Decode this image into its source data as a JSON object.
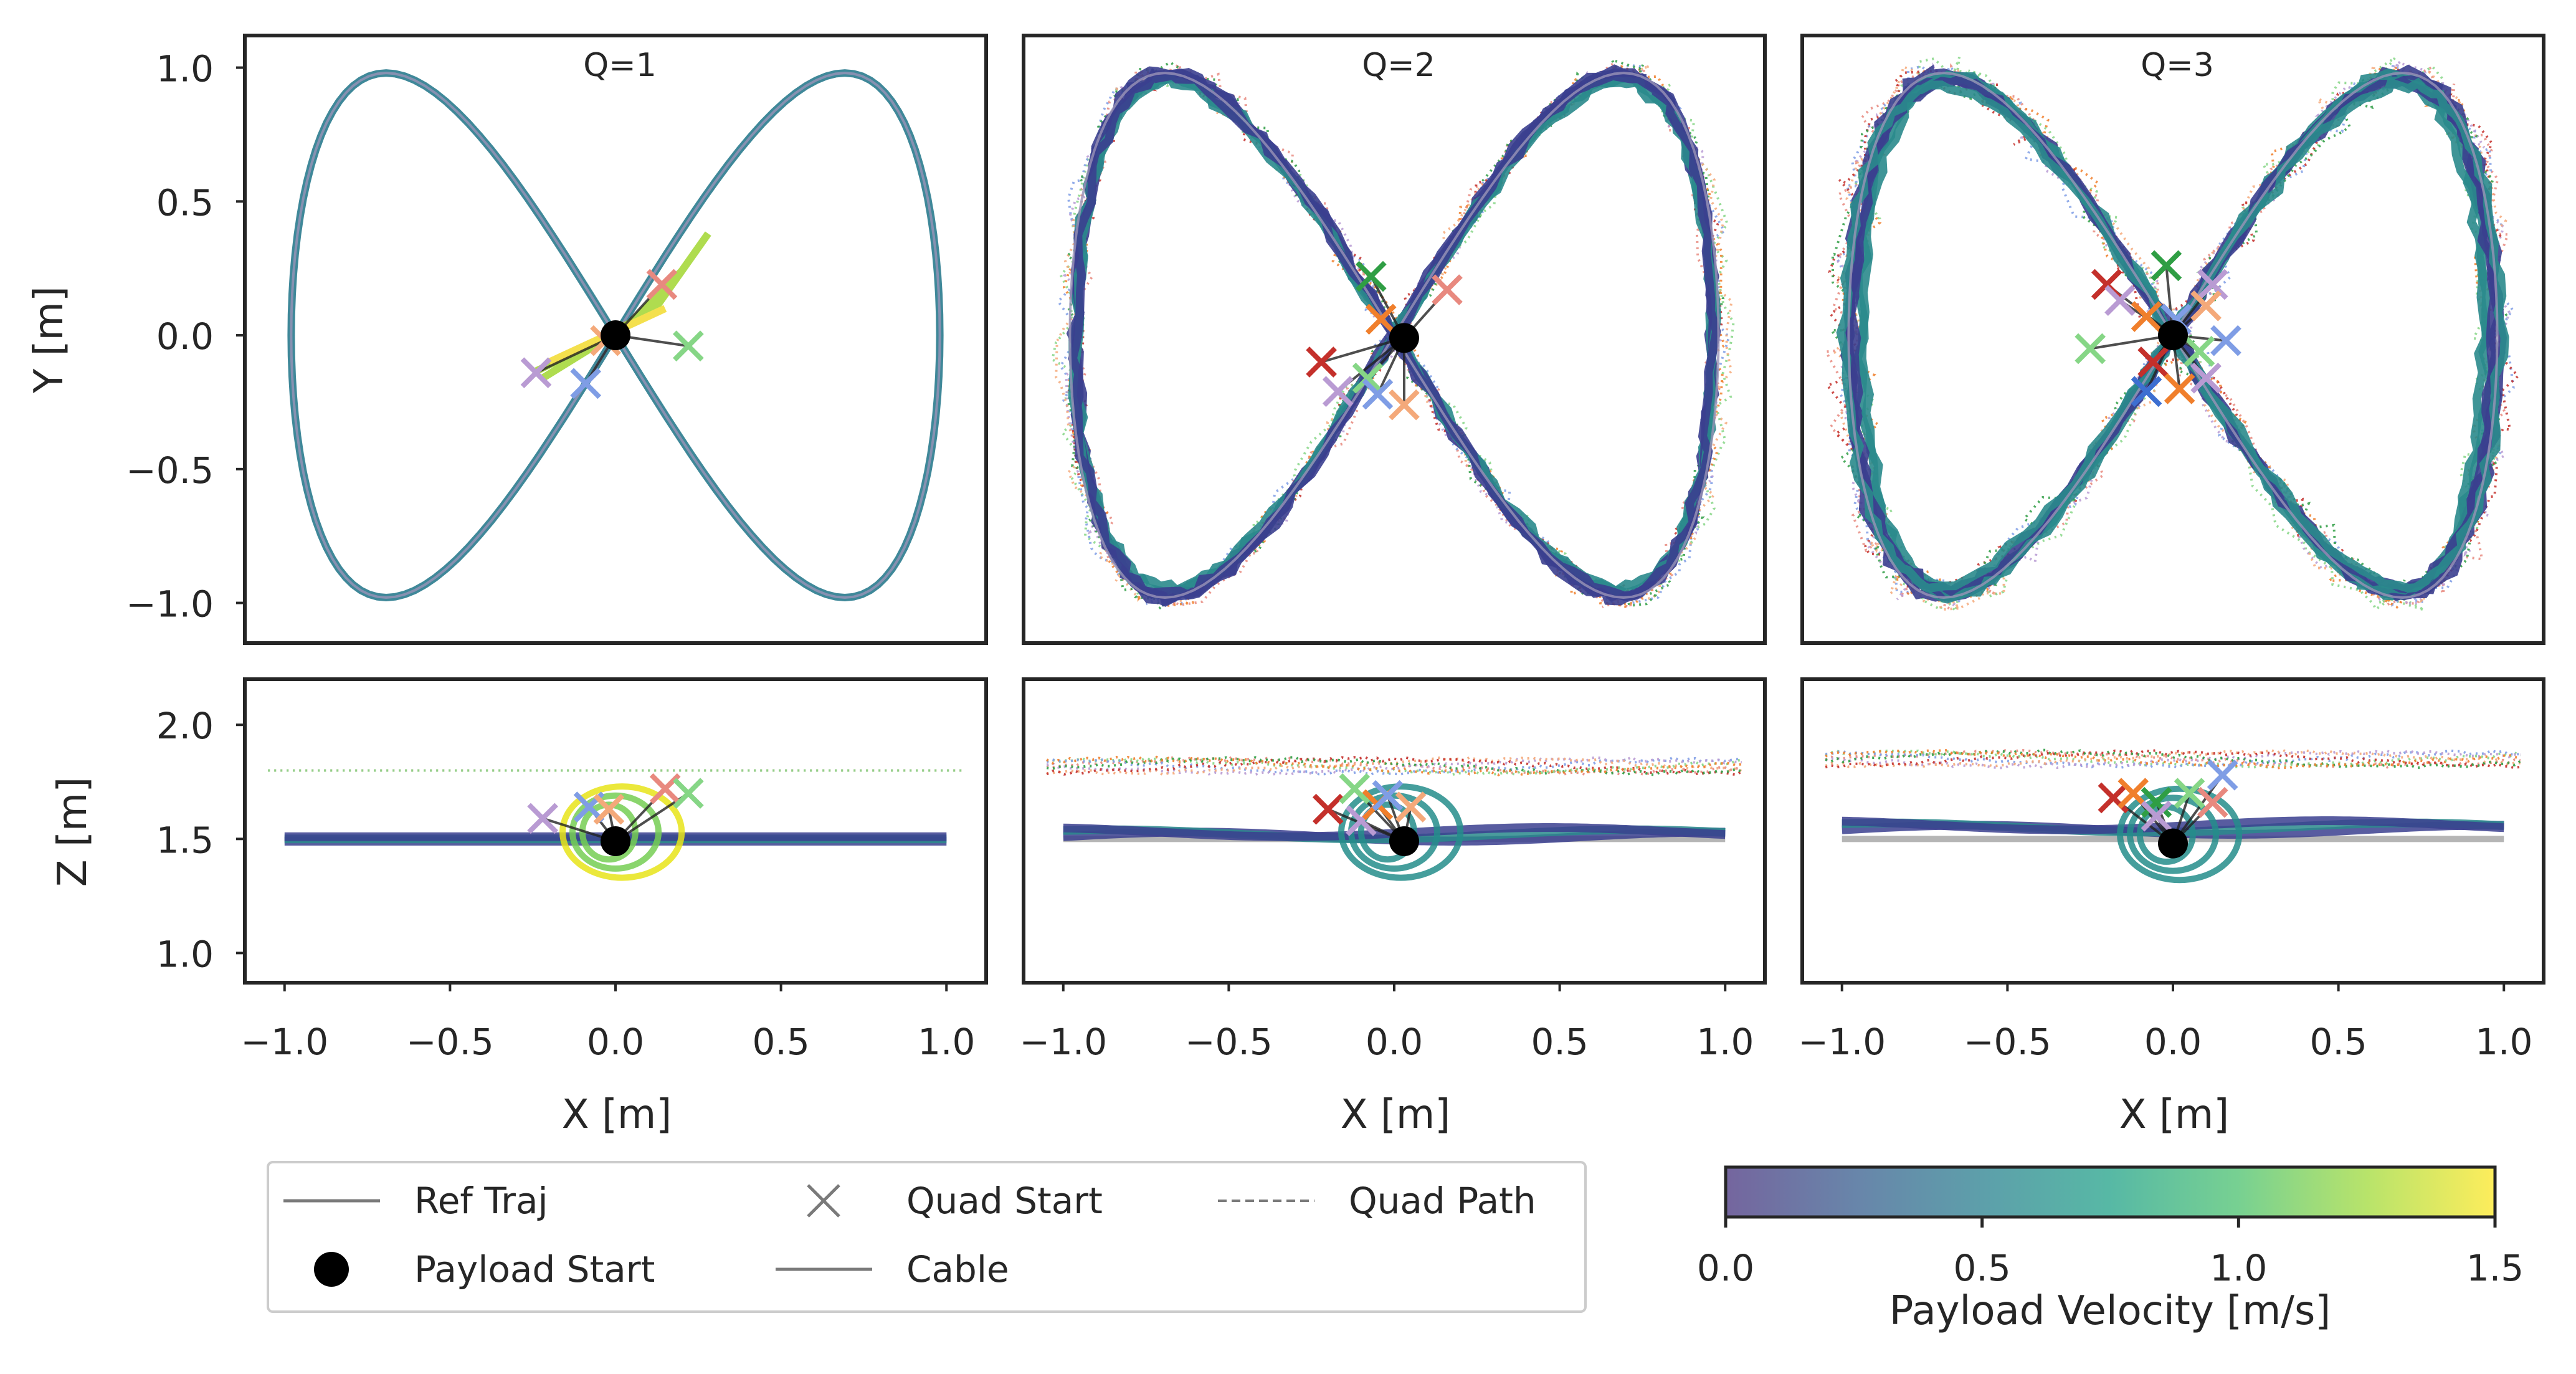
{
  "chart_data": [
    {
      "type": "line",
      "title": "Q=1",
      "xlabel": "",
      "ylabel": "Y [m]",
      "xlim": [
        -1.12,
        1.12
      ],
      "ylim": [
        -1.15,
        1.12
      ],
      "xticks": [],
      "yticks": [
        {
          "v": 1.0,
          "l": "1.0"
        },
        {
          "v": 0.5,
          "l": "0.5"
        },
        {
          "v": 0.0,
          "l": "0.0"
        },
        {
          "v": -0.5,
          "l": "−0.5"
        },
        {
          "v": -1.0,
          "l": "−1.0"
        }
      ],
      "grid": false,
      "series": [
        {
          "role": "reference",
          "curve": "figure-eight",
          "x_amplitude": 1.0,
          "y_amplitude": 1.0,
          "color": "#7a7a7a"
        },
        {
          "role": "payload-path",
          "curve": "figure-eight",
          "x_amplitude": 1.0,
          "y_amplitude": 1.0,
          "color": "#26808e"
        },
        {
          "role": "payload-start",
          "x": 0.0,
          "y": 0.0,
          "color": "#000000"
        }
      ],
      "quad_starts": [
        {
          "x": 0.14,
          "y": 0.19,
          "color": "#e8897f"
        },
        {
          "x": 0.22,
          "y": -0.04,
          "color": "#86d686"
        },
        {
          "x": -0.09,
          "y": -0.18,
          "color": "#7f9de5"
        },
        {
          "x": -0.24,
          "y": -0.14,
          "color": "#b99bd3"
        },
        {
          "x": -0.03,
          "y": -0.02,
          "color": "#f4a97a"
        }
      ]
    },
    {
      "type": "line",
      "title": "Q=2",
      "xlabel": "",
      "ylabel": "",
      "xlim": [
        -1.12,
        1.12
      ],
      "ylim": [
        -1.15,
        1.12
      ],
      "xticks": [],
      "yticks": [],
      "grid": false,
      "series": [
        {
          "role": "reference",
          "curve": "figure-eight",
          "x_amplitude": 1.0,
          "y_amplitude": 1.0,
          "color": "#7a7a7a"
        },
        {
          "role": "payload-path",
          "curve": "figure-eight",
          "x_amplitude": 1.0,
          "y_amplitude": 1.0,
          "color": "#3a3e8c"
        },
        {
          "role": "payload-start",
          "x": 0.03,
          "y": -0.01,
          "color": "#000000"
        }
      ],
      "quad_starts": [
        {
          "x": -0.07,
          "y": 0.22,
          "color": "#2f9e44"
        },
        {
          "x": 0.16,
          "y": 0.17,
          "color": "#e8897f"
        },
        {
          "x": -0.04,
          "y": 0.06,
          "color": "#f07f2c"
        },
        {
          "x": -0.22,
          "y": -0.1,
          "color": "#c4302b"
        },
        {
          "x": -0.17,
          "y": -0.21,
          "color": "#b99bd3"
        },
        {
          "x": -0.08,
          "y": -0.16,
          "color": "#86d686"
        },
        {
          "x": -0.05,
          "y": -0.22,
          "color": "#7f9de5"
        },
        {
          "x": 0.03,
          "y": -0.26,
          "color": "#f4a97a"
        }
      ]
    },
    {
      "type": "line",
      "title": "Q=3",
      "xlabel": "",
      "ylabel": "",
      "xlim": [
        -1.12,
        1.12
      ],
      "ylim": [
        -1.15,
        1.12
      ],
      "xticks": [],
      "yticks": [],
      "grid": false,
      "series": [
        {
          "role": "reference",
          "curve": "figure-eight",
          "x_amplitude": 1.0,
          "y_amplitude": 1.0,
          "color": "#7a7a7a"
        },
        {
          "role": "payload-path",
          "curve": "figure-eight",
          "x_amplitude": 1.0,
          "y_amplitude": 1.0,
          "color": "#3a3e8c"
        },
        {
          "role": "payload-start",
          "x": 0.0,
          "y": 0.0,
          "color": "#000000"
        }
      ],
      "quad_starts": [
        {
          "x": -0.02,
          "y": 0.26,
          "color": "#2f9e44"
        },
        {
          "x": -0.2,
          "y": 0.19,
          "color": "#c4302b"
        },
        {
          "x": -0.16,
          "y": 0.13,
          "color": "#b99bd3"
        },
        {
          "x": 0.12,
          "y": 0.19,
          "color": "#b99bd3"
        },
        {
          "x": 0.1,
          "y": 0.11,
          "color": "#f4a97a"
        },
        {
          "x": -0.08,
          "y": 0.07,
          "color": "#f07f2c"
        },
        {
          "x": 0.01,
          "y": 0.06,
          "color": "#7f9de5"
        },
        {
          "x": -0.25,
          "y": -0.05,
          "color": "#86d686"
        },
        {
          "x": 0.16,
          "y": -0.02,
          "color": "#7f9de5"
        },
        {
          "x": 0.08,
          "y": -0.06,
          "color": "#86d686"
        },
        {
          "x": -0.06,
          "y": -0.1,
          "color": "#c4302b"
        },
        {
          "x": -0.08,
          "y": -0.21,
          "color": "#3d6fd1"
        },
        {
          "x": 0.02,
          "y": -0.2,
          "color": "#f07f2c"
        },
        {
          "x": 0.1,
          "y": -0.16,
          "color": "#b99bd3"
        }
      ]
    },
    {
      "type": "line",
      "title": "",
      "xlabel": "X [m]",
      "ylabel": "Z [m]",
      "xlim": [
        -1.12,
        1.12
      ],
      "ylim": [
        0.87,
        2.2
      ],
      "xticks": [
        {
          "v": -1.0,
          "l": "−1.0"
        },
        {
          "v": -0.5,
          "l": "−0.5"
        },
        {
          "v": 0.0,
          "l": "0.0"
        },
        {
          "v": 0.5,
          "l": "0.5"
        },
        {
          "v": 1.0,
          "l": "1.0"
        }
      ],
      "yticks": [
        {
          "v": 2.0,
          "l": "2.0"
        },
        {
          "v": 1.5,
          "l": "1.5"
        },
        {
          "v": 1.0,
          "l": "1.0"
        }
      ],
      "grid": false,
      "reference_z": 1.5,
      "payload_z": 1.5,
      "quad_ref_z": 1.8,
      "payload_start": {
        "x": 0.0,
        "z": 1.49
      },
      "quad_starts": [
        {
          "x": -0.08,
          "z": 1.64,
          "color": "#7f9de5"
        },
        {
          "x": 0.15,
          "z": 1.72,
          "color": "#e8897f"
        },
        {
          "x": 0.22,
          "z": 1.7,
          "color": "#86d686"
        },
        {
          "x": -0.22,
          "z": 1.59,
          "color": "#b99bd3"
        },
        {
          "x": -0.02,
          "z": 1.63,
          "color": "#f4a97a"
        }
      ]
    },
    {
      "type": "line",
      "title": "",
      "xlabel": "X [m]",
      "ylabel": "",
      "xlim": [
        -1.12,
        1.12
      ],
      "ylim": [
        0.87,
        2.2
      ],
      "xticks": [
        {
          "v": -1.0,
          "l": "−1.0"
        },
        {
          "v": -0.5,
          "l": "−0.5"
        },
        {
          "v": 0.0,
          "l": "0.0"
        },
        {
          "v": 0.5,
          "l": "0.5"
        },
        {
          "v": 1.0,
          "l": "1.0"
        }
      ],
      "yticks": [],
      "grid": false,
      "reference_z": 1.5,
      "payload_z": 1.52,
      "quad_ref_z": 1.82,
      "payload_start": {
        "x": 0.03,
        "z": 1.49
      },
      "quad_starts": [
        {
          "x": -0.2,
          "z": 1.63,
          "color": "#c4302b"
        },
        {
          "x": -0.1,
          "z": 1.58,
          "color": "#b99bd3"
        },
        {
          "x": -0.05,
          "z": 1.65,
          "color": "#f07f2c"
        },
        {
          "x": -0.02,
          "z": 1.69,
          "color": "#7f9de5"
        },
        {
          "x": 0.05,
          "z": 1.64,
          "color": "#f4a97a"
        },
        {
          "x": -0.12,
          "z": 1.72,
          "color": "#86d686"
        }
      ]
    },
    {
      "type": "line",
      "title": "",
      "xlabel": "X [m]",
      "ylabel": "",
      "xlim": [
        -1.12,
        1.12
      ],
      "ylim": [
        0.87,
        2.2
      ],
      "xticks": [
        {
          "v": -1.0,
          "l": "−1.0"
        },
        {
          "v": -0.5,
          "l": "−0.5"
        },
        {
          "v": 0.0,
          "l": "0.0"
        },
        {
          "v": 0.5,
          "l": "0.5"
        },
        {
          "v": 1.0,
          "l": "1.0"
        }
      ],
      "yticks": [],
      "grid": false,
      "reference_z": 1.5,
      "payload_z": 1.55,
      "quad_ref_z": 1.85,
      "payload_start": {
        "x": 0.0,
        "z": 1.48
      },
      "quad_starts": [
        {
          "x": -0.18,
          "z": 1.68,
          "color": "#c4302b"
        },
        {
          "x": -0.12,
          "z": 1.7,
          "color": "#f07f2c"
        },
        {
          "x": -0.05,
          "z": 1.66,
          "color": "#2f9e44"
        },
        {
          "x": 0.05,
          "z": 1.7,
          "color": "#86d686"
        },
        {
          "x": 0.12,
          "z": 1.66,
          "color": "#e8897f"
        },
        {
          "x": 0.15,
          "z": 1.78,
          "color": "#7f9de5"
        },
        {
          "x": -0.05,
          "z": 1.6,
          "color": "#b99bd3"
        }
      ]
    }
  ],
  "legend": {
    "items": [
      {
        "label": "Ref Traj",
        "marker": "solid-line"
      },
      {
        "label": "Quad Start",
        "marker": "x"
      },
      {
        "label": "Quad Path",
        "marker": "dashed-line"
      },
      {
        "label": "Payload Start",
        "marker": "dot"
      },
      {
        "label": "Cable",
        "marker": "solid-line"
      }
    ]
  },
  "colorbar": {
    "label": "Payload Velocity [m/s]",
    "min": 0.0,
    "max": 1.5,
    "ticks": [
      {
        "v": 0.0,
        "l": "0.0"
      },
      {
        "v": 0.5,
        "l": "0.5"
      },
      {
        "v": 1.0,
        "l": "1.0"
      },
      {
        "v": 1.5,
        "l": "1.5"
      }
    ],
    "colormap": [
      "#46327e",
      "#365c8d",
      "#277f8e",
      "#1fa187",
      "#4ac16d",
      "#a0da39",
      "#fde725"
    ]
  }
}
